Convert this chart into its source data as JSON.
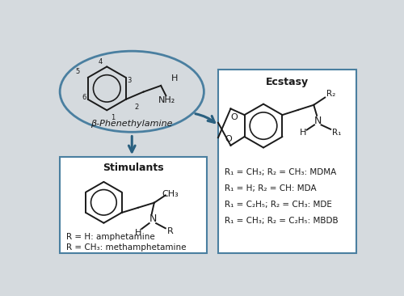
{
  "background_color": "#d5dade",
  "figure_width": 5.0,
  "figure_height": 3.66,
  "arrow_color": "#2a6080",
  "box_edge_color": "#4a7fa0",
  "ellipse_edge_color": "#4a7fa0",
  "title_phenethylamine": "β-Phenethylamine",
  "title_stimulants": "Stimulants",
  "title_ecstasy": "Ecstasy",
  "stimulants_line1": "R = H: amphetamine",
  "stimulants_line2": "R = CH₃: methamphetamine",
  "ecstasy_line1": "R₁ = CH₃; R₂ = CH₃: MDMA",
  "ecstasy_line2": "R₁ = H; R₂ = CH: MDA",
  "ecstasy_line3": "R₁ = C₂H₅; R₂ = CH₃: MDE",
  "ecstasy_line4": "R₁ = CH₃; R₂ = C₂H₅: MBDB",
  "text_color": "#1a1a1a",
  "line_color": "#1a1a1a"
}
